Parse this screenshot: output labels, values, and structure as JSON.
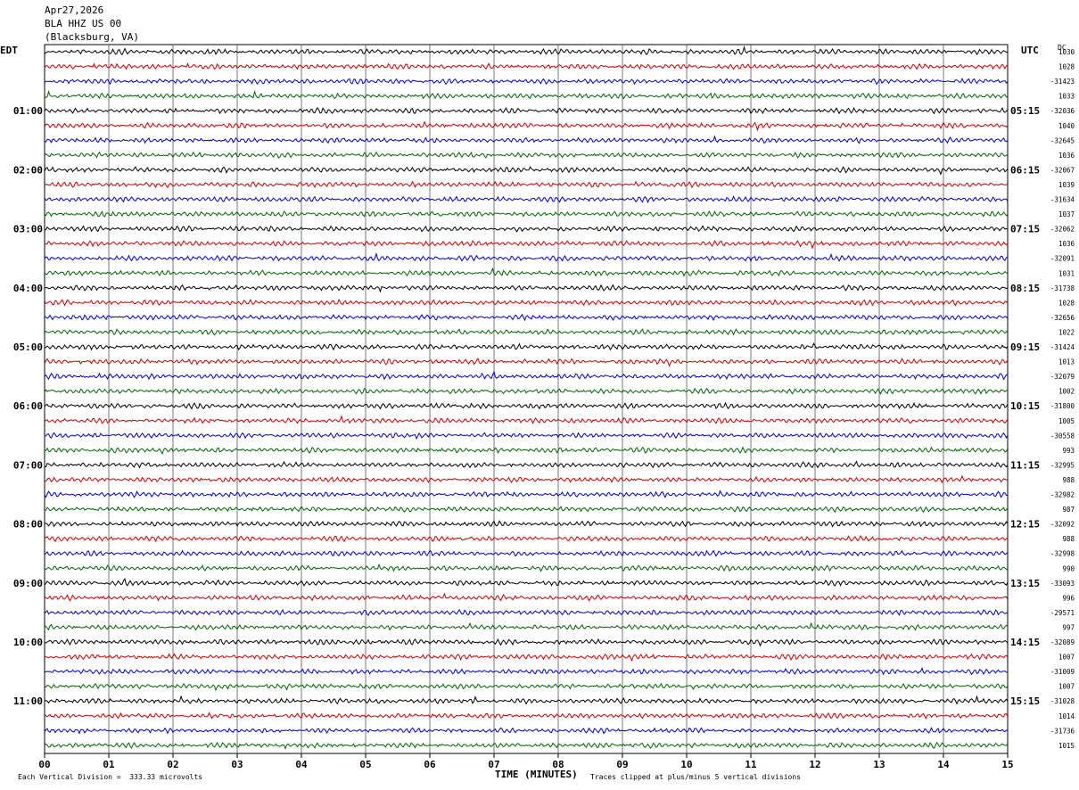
{
  "header": {
    "date": "Apr27,2026",
    "station": "BLA HHZ US 00",
    "location": "(Blacksburg, VA)"
  },
  "labels": {
    "left_tz": "EDT",
    "right_tz": "UTC",
    "right_col": "DC"
  },
  "footer": {
    "xlabel": "TIME (MINUTES)",
    "scale_note": "Each Vertical Division =  333.33 microvolts",
    "clip_note": "Traces clipped at plus/minus 5 vertical divisions"
  },
  "colors": {
    "trace_cycle": [
      "#000000",
      "#cc0000",
      "#0000cc",
      "#006600"
    ],
    "grid": "#000000",
    "background": "#ffffff"
  },
  "chart_data": {
    "type": "line",
    "title": "BLA HHZ US 00 (Blacksburg, VA) Apr27,2026",
    "xlabel": "TIME (MINUTES)",
    "x_ticks": [
      "00",
      "01",
      "02",
      "03",
      "04",
      "05",
      "06",
      "07",
      "08",
      "09",
      "10",
      "11",
      "12",
      "13",
      "14",
      "15"
    ],
    "xlim": [
      0,
      15
    ],
    "traces_per_hour": 4,
    "minutes_per_trace": 15,
    "left_hour_labels": [
      "01:00",
      "02:00",
      "03:00",
      "04:00",
      "05:00",
      "06:00",
      "07:00",
      "08:00",
      "09:00",
      "10:00",
      "11:00"
    ],
    "right_hour_labels": [
      "05:15",
      "06:15",
      "07:15",
      "08:15",
      "09:15",
      "10:15",
      "11:15",
      "12:15",
      "13:15",
      "14:15",
      "15:15"
    ],
    "dc_offsets": [
      "1030",
      "1028",
      "-31423",
      "1033",
      "-32036",
      "1040",
      "-32645",
      "1036",
      "-32067",
      "1039",
      "-31634",
      "1037",
      "-32062",
      "1036",
      "-32091",
      "1031",
      "-31738",
      "1028",
      "-32656",
      "1022",
      "-31424",
      "1013",
      "-32079",
      "1002",
      "-31800",
      "1005",
      "-30558",
      "993",
      "-32995",
      "988",
      "-32982",
      "987",
      "-32092",
      "988",
      "-32998",
      "990",
      "-33093",
      "996",
      "-29571",
      "997",
      "-32089",
      "1007",
      "-31009",
      "1007",
      "-31028",
      "1014",
      "-31736",
      "1015"
    ],
    "grid": true,
    "amplitude_scale_microvolts_per_division": 333.33,
    "clip_divisions": 5
  }
}
